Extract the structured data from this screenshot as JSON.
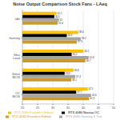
{
  "chart_data": {
    "type": "bar",
    "title": "Noise Output Comparison Stock Fans - LAeq",
    "orientation": "horizontal",
    "categories": [
      "Idle",
      "Gaming",
      "Max Load",
      "Silent BIOS",
      "OC BIOS"
    ],
    "series": [
      {
        "name": "RTX 4080 Founders Edition",
        "color": "#ffc000",
        "values": [
          31.2,
          38.4,
          40.1,
          36.8,
          41.5
        ]
      },
      {
        "name": "RTX 4080 Noctua OC",
        "color": "#000000",
        "values": [
          30.5,
          34.6,
          36.2,
          33.9,
          37.7
        ]
      },
      {
        "name": "RTX 4090 Gaming X Trio",
        "color": "#a5a5a5",
        "values": [
          32.0,
          39.2,
          41.8,
          37.4,
          42.6
        ]
      },
      {
        "name": "RTX 4090 Founders Edition",
        "color": "#c99a2e",
        "values": [
          31.6,
          37.9,
          40.7,
          36.1,
          41.9
        ]
      }
    ],
    "xlim": [
      20,
      50
    ],
    "xticks": [
      20,
      25,
      30,
      35,
      40,
      45,
      50
    ],
    "grid": true,
    "legend": "bottom",
    "data_labels": true
  }
}
